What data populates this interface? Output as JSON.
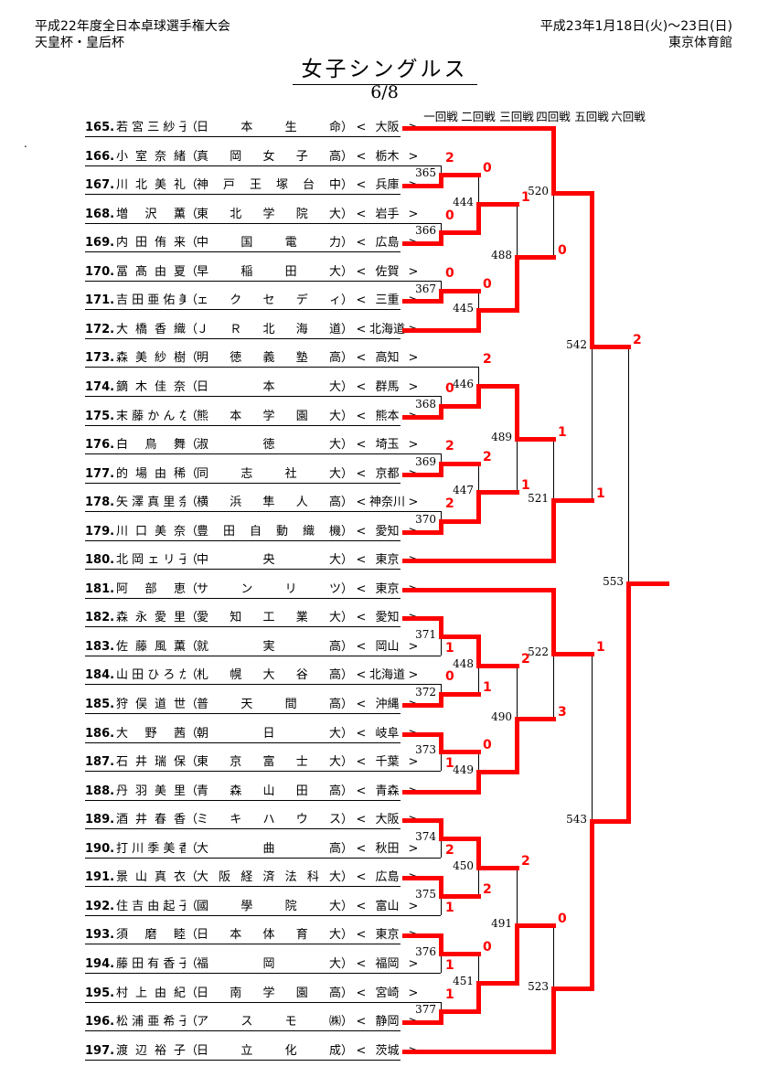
{
  "header": {
    "tournament": "平成22年度全日本卓球選手権大会",
    "cups": "天皇杯・皇后杯",
    "dates": "平成23年1月18日(火)～23日(日)",
    "venue": "東京体育館",
    "event_title": "女子シングルス",
    "page_number": "6/8"
  },
  "round_headers": [
    "一回戦",
    "二回戦",
    "三回戦",
    "四回戦",
    "五回戦",
    "六回戦"
  ],
  "colors": {
    "winner_path": "#ff0000",
    "line": "#000000",
    "score_text": "#ff0000"
  },
  "stray_mark": ".",
  "players": [
    {
      "no": 165,
      "name": "若宮三紗子",
      "club": "日本生命",
      "pref": "大阪"
    },
    {
      "no": 166,
      "name": "小室奈緒",
      "club": "真岡女子高",
      "pref": "栃木"
    },
    {
      "no": 167,
      "name": "川北美礼",
      "club": "神戸王塚台中",
      "pref": "兵庫"
    },
    {
      "no": 168,
      "name": "増沢薫",
      "club": "東北学院大",
      "pref": "岩手"
    },
    {
      "no": 169,
      "name": "内田侑来",
      "club": "中国電力",
      "pref": "広島"
    },
    {
      "no": 170,
      "name": "冨髙由夏",
      "club": "早稲田大",
      "pref": "佐賀"
    },
    {
      "no": 171,
      "name": "吉田亜佑美",
      "club": "ェクセディ",
      "pref": "三重"
    },
    {
      "no": 172,
      "name": "大橋香織",
      "club": "ＪＲ北海道",
      "pref": "北海道"
    },
    {
      "no": 173,
      "name": "森美紗樹",
      "club": "明徳義塾高",
      "pref": "高知"
    },
    {
      "no": 174,
      "name": "鏑木佳奈",
      "club": "日本大",
      "pref": "群馬"
    },
    {
      "no": 175,
      "name": "末藤かんな",
      "club": "熊本学園大",
      "pref": "熊本"
    },
    {
      "no": 176,
      "name": "白鳥舞",
      "club": "淑徳大",
      "pref": "埼玉"
    },
    {
      "no": 177,
      "name": "的場由稀",
      "club": "同志社大",
      "pref": "京都"
    },
    {
      "no": 178,
      "name": "矢澤真里奈",
      "club": "横浜隼人高",
      "pref": "神奈川"
    },
    {
      "no": 179,
      "name": "川口美奈",
      "club": "豊田自動織機",
      "pref": "愛知"
    },
    {
      "no": 180,
      "name": "北岡ェリ子",
      "club": "中央大",
      "pref": "東京"
    },
    {
      "no": 181,
      "name": "阿部恵",
      "club": "サンリツ",
      "pref": "東京"
    },
    {
      "no": 182,
      "name": "森永愛里",
      "club": "愛知工業大",
      "pref": "愛知"
    },
    {
      "no": 183,
      "name": "佐藤風薫",
      "club": "就実高",
      "pref": "岡山"
    },
    {
      "no": 184,
      "name": "山田ひろか",
      "club": "札幌大谷高",
      "pref": "北海道"
    },
    {
      "no": 185,
      "name": "狩俣道世",
      "club": "普天間高",
      "pref": "沖縄"
    },
    {
      "no": 186,
      "name": "大野茜",
      "club": "朝日大",
      "pref": "岐阜"
    },
    {
      "no": 187,
      "name": "石井瑞保",
      "club": "東京富士大",
      "pref": "千葉"
    },
    {
      "no": 188,
      "name": "丹羽美里",
      "club": "青森山田高",
      "pref": "青森"
    },
    {
      "no": 189,
      "name": "酒井春香",
      "club": "ミキハウス",
      "pref": "大阪"
    },
    {
      "no": 190,
      "name": "打川季美香",
      "club": "大曲高",
      "pref": "秋田"
    },
    {
      "no": 191,
      "name": "景山真衣",
      "club": "大阪経済法科大",
      "pref": "広島"
    },
    {
      "no": 192,
      "name": "住吉由起子",
      "club": "國學院大",
      "pref": "富山"
    },
    {
      "no": 193,
      "name": "須磨睦",
      "club": "日本体育大",
      "pref": "東京"
    },
    {
      "no": 194,
      "name": "藤田有香子",
      "club": "福岡大",
      "pref": "福岡"
    },
    {
      "no": 195,
      "name": "村上由紀",
      "club": "日南学園高",
      "pref": "宮崎"
    },
    {
      "no": 196,
      "name": "松浦亜希子",
      "club": "アスモ㈱",
      "pref": "静岡"
    },
    {
      "no": 197,
      "name": "渡辺裕子",
      "club": "日立化成",
      "pref": "茨城"
    }
  ],
  "matches": [
    {
      "no": 365,
      "round": 1,
      "top": "P166",
      "bottom": "P167",
      "winner": "bottom",
      "loser_score": 2
    },
    {
      "no": 366,
      "round": 1,
      "top": "P168",
      "bottom": "P169",
      "winner": "bottom",
      "loser_score": 0
    },
    {
      "no": 367,
      "round": 1,
      "top": "P170",
      "bottom": "P171",
      "winner": "bottom",
      "loser_score": 0
    },
    {
      "no": 368,
      "round": 1,
      "top": "P174",
      "bottom": "P175",
      "winner": "bottom",
      "loser_score": 0
    },
    {
      "no": 369,
      "round": 1,
      "top": "P176",
      "bottom": "P177",
      "winner": "bottom",
      "loser_score": 2
    },
    {
      "no": 370,
      "round": 1,
      "top": "P178",
      "bottom": "P179",
      "winner": "bottom",
      "loser_score": 2
    },
    {
      "no": 371,
      "round": 1,
      "top": "P182",
      "bottom": "P183",
      "winner": "top",
      "loser_score": 1
    },
    {
      "no": 372,
      "round": 1,
      "top": "P184",
      "bottom": "P185",
      "winner": "bottom",
      "loser_score": 0
    },
    {
      "no": 373,
      "round": 1,
      "top": "P186",
      "bottom": "P187",
      "winner": "top",
      "loser_score": 1
    },
    {
      "no": 374,
      "round": 1,
      "top": "P189",
      "bottom": "P190",
      "winner": "top",
      "loser_score": 2
    },
    {
      "no": 375,
      "round": 1,
      "top": "P191",
      "bottom": "P192",
      "winner": "top",
      "loser_score": 1
    },
    {
      "no": 376,
      "round": 1,
      "top": "P193",
      "bottom": "P194",
      "winner": "top",
      "loser_score": 1
    },
    {
      "no": 377,
      "round": 1,
      "top": "P195",
      "bottom": "P196",
      "winner": "bottom",
      "loser_score": 1
    },
    {
      "no": 444,
      "round": 2,
      "top": "M365",
      "bottom": "M366",
      "winner": "bottom",
      "loser_score": 0
    },
    {
      "no": 445,
      "round": 2,
      "top": "M367",
      "bottom": "P172",
      "winner": "bottom",
      "loser_score": 0
    },
    {
      "no": 446,
      "round": 2,
      "top": "P173",
      "bottom": "M368",
      "winner": "bottom",
      "loser_score": 2
    },
    {
      "no": 447,
      "round": 2,
      "top": "M369",
      "bottom": "M370",
      "winner": "bottom",
      "loser_score": 2
    },
    {
      "no": 448,
      "round": 2,
      "top": "M371",
      "bottom": "M372",
      "winner": "top",
      "loser_score": 1
    },
    {
      "no": 449,
      "round": 2,
      "top": "M373",
      "bottom": "P188",
      "winner": "bottom",
      "loser_score": 0
    },
    {
      "no": 450,
      "round": 2,
      "top": "M374",
      "bottom": "M375",
      "winner": "top",
      "loser_score": 2
    },
    {
      "no": 451,
      "round": 2,
      "top": "M376",
      "bottom": "M377",
      "winner": "bottom",
      "loser_score": 0
    },
    {
      "no": 488,
      "round": 3,
      "top": "M444",
      "bottom": "M445",
      "winner": "bottom",
      "loser_score": 1
    },
    {
      "no": 489,
      "round": 3,
      "top": "M446",
      "bottom": "M447",
      "winner": "top",
      "loser_score": 1
    },
    {
      "no": 490,
      "round": 3,
      "top": "M448",
      "bottom": "M449",
      "winner": "bottom",
      "loser_score": 2
    },
    {
      "no": 491,
      "round": 3,
      "top": "M450",
      "bottom": "M451",
      "winner": "bottom",
      "loser_score": 2
    },
    {
      "no": 520,
      "round": 4,
      "top": "P165",
      "bottom": "M488",
      "winner": "top",
      "loser_score": 0
    },
    {
      "no": 521,
      "round": 4,
      "top": "M489",
      "bottom": "P180",
      "winner": "bottom",
      "loser_score": 1
    },
    {
      "no": 522,
      "round": 4,
      "top": "P181",
      "bottom": "M490",
      "winner": "top",
      "loser_score": 3
    },
    {
      "no": 523,
      "round": 4,
      "top": "M491",
      "bottom": "P197",
      "winner": "bottom",
      "loser_score": 0
    },
    {
      "no": 542,
      "round": 5,
      "top": "M520",
      "bottom": "M521",
      "winner": "top",
      "loser_score": 1
    },
    {
      "no": 543,
      "round": 5,
      "top": "M522",
      "bottom": "M523",
      "winner": "bottom",
      "loser_score": 1
    },
    {
      "no": 553,
      "round": 6,
      "top": "M542",
      "bottom": "M543",
      "winner": "bottom",
      "loser_score": 2
    }
  ]
}
